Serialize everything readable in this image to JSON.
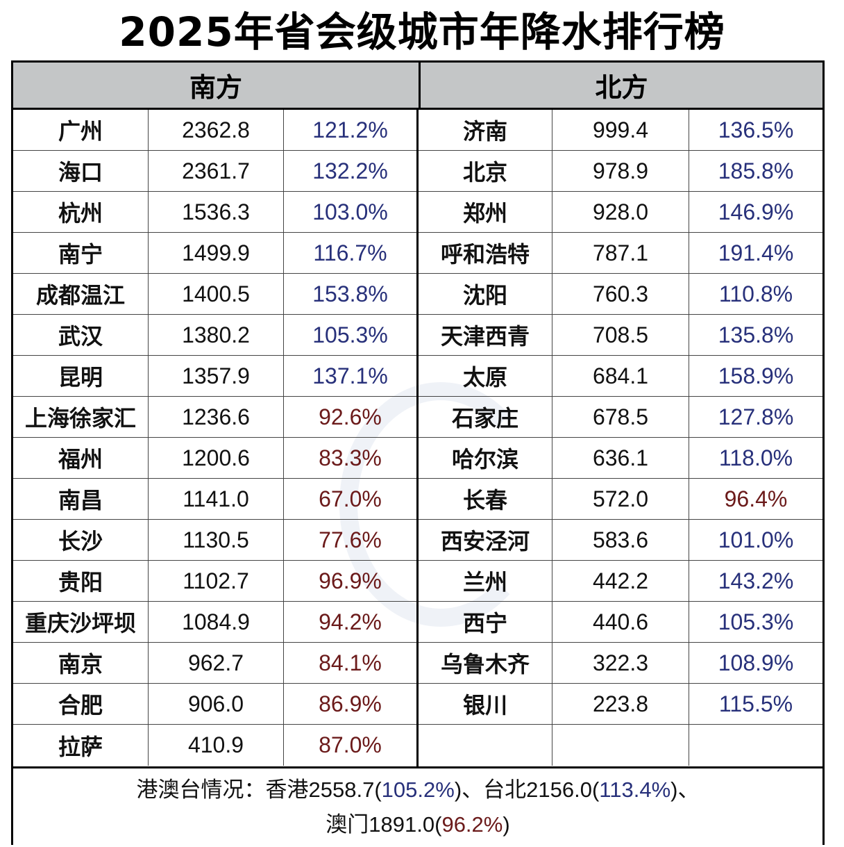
{
  "title": "2025年省会级城市年降水排行榜",
  "colors": {
    "above_normal": "#27307a",
    "below_normal": "#6b1a1a",
    "header_bg": "#c4c6c7"
  },
  "south": {
    "header": "南方",
    "rows": [
      {
        "city": "广州",
        "value": "2362.8",
        "pct": "121.2%",
        "status": "above"
      },
      {
        "city": "海口",
        "value": "2361.7",
        "pct": "132.2%",
        "status": "above"
      },
      {
        "city": "杭州",
        "value": "1536.3",
        "pct": "103.0%",
        "status": "above"
      },
      {
        "city": "南宁",
        "value": "1499.9",
        "pct": "116.7%",
        "status": "above"
      },
      {
        "city": "成都温江",
        "value": "1400.5",
        "pct": "153.8%",
        "status": "above"
      },
      {
        "city": "武汉",
        "value": "1380.2",
        "pct": "105.3%",
        "status": "above"
      },
      {
        "city": "昆明",
        "value": "1357.9",
        "pct": "137.1%",
        "status": "above"
      },
      {
        "city": "上海徐家汇",
        "value": "1236.6",
        "pct": "92.6%",
        "status": "below"
      },
      {
        "city": "福州",
        "value": "1200.6",
        "pct": "83.3%",
        "status": "below"
      },
      {
        "city": "南昌",
        "value": "1141.0",
        "pct": "67.0%",
        "status": "below"
      },
      {
        "city": "长沙",
        "value": "1130.5",
        "pct": "77.6%",
        "status": "below"
      },
      {
        "city": "贵阳",
        "value": "1102.7",
        "pct": "96.9%",
        "status": "below"
      },
      {
        "city": "重庆沙坪坝",
        "value": "1084.9",
        "pct": "94.2%",
        "status": "below"
      },
      {
        "city": "南京",
        "value": "962.7",
        "pct": "84.1%",
        "status": "below"
      },
      {
        "city": "合肥",
        "value": "906.0",
        "pct": "86.9%",
        "status": "below"
      },
      {
        "city": "拉萨",
        "value": "410.9",
        "pct": "87.0%",
        "status": "below"
      }
    ]
  },
  "north": {
    "header": "北方",
    "rows": [
      {
        "city": "济南",
        "value": "999.4",
        "pct": "136.5%",
        "status": "above"
      },
      {
        "city": "北京",
        "value": "978.9",
        "pct": "185.8%",
        "status": "above"
      },
      {
        "city": "郑州",
        "value": "928.0",
        "pct": "146.9%",
        "status": "above"
      },
      {
        "city": "呼和浩特",
        "value": "787.1",
        "pct": "191.4%",
        "status": "above"
      },
      {
        "city": "沈阳",
        "value": "760.3",
        "pct": "110.8%",
        "status": "above"
      },
      {
        "city": "天津西青",
        "value": "708.5",
        "pct": "135.8%",
        "status": "above"
      },
      {
        "city": "太原",
        "value": "684.1",
        "pct": "158.9%",
        "status": "above"
      },
      {
        "city": "石家庄",
        "value": "678.5",
        "pct": "127.8%",
        "status": "above"
      },
      {
        "city": "哈尔滨",
        "value": "636.1",
        "pct": "118.0%",
        "status": "above"
      },
      {
        "city": "长春",
        "value": "572.0",
        "pct": "96.4%",
        "status": "below"
      },
      {
        "city": "西安泾河",
        "value": "583.6",
        "pct": "101.0%",
        "status": "above"
      },
      {
        "city": "兰州",
        "value": "442.2",
        "pct": "143.2%",
        "status": "above"
      },
      {
        "city": "西宁",
        "value": "440.6",
        "pct": "105.3%",
        "status": "above"
      },
      {
        "city": "乌鲁木齐",
        "value": "322.3",
        "pct": "108.9%",
        "status": "above"
      },
      {
        "city": "银川",
        "value": "223.8",
        "pct": "115.5%",
        "status": "above"
      },
      {
        "city": "",
        "value": "",
        "pct": "",
        "status": ""
      }
    ]
  },
  "footer": {
    "label": "港澳台情况：",
    "hk_name": "香港",
    "hk_value": "2558.7",
    "hk_pct": "105.2%",
    "sep1": "、",
    "tp_name": "台北",
    "tp_value": "2156.0",
    "tp_pct": "113.4%",
    "sep2": "、",
    "mo_name": "澳门",
    "mo_value": "1891.0",
    "mo_pct": "96.2%"
  }
}
